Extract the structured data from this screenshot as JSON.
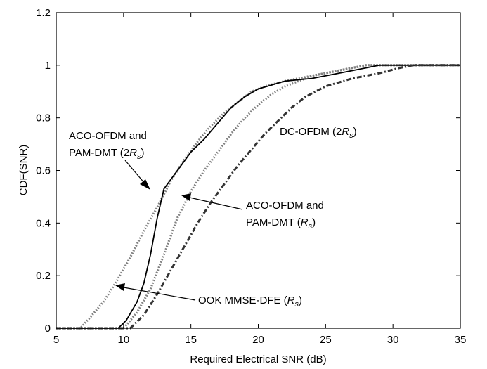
{
  "chart_data": {
    "type": "line",
    "title": "",
    "xlabel": "Required Electrical SNR (dB)",
    "ylabel": "CDF(SNR)",
    "xlim": [
      5,
      35
    ],
    "ylim": [
      0,
      1.2
    ],
    "x_ticks": [
      "5",
      "10",
      "15",
      "20",
      "25",
      "30",
      "35"
    ],
    "y_ticks": [
      "0",
      "0.2",
      "0.4",
      "0.6",
      "0.8",
      "1",
      "1.2"
    ],
    "grid": false,
    "legend": "none",
    "series": [
      {
        "style": "dotted",
        "color": "#808080",
        "points": [
          [
            5,
            0
          ],
          [
            6.8,
            0
          ],
          [
            7.5,
            0.04
          ],
          [
            8.5,
            0.1
          ],
          [
            9.5,
            0.18
          ],
          [
            10.5,
            0.27
          ],
          [
            11.5,
            0.37
          ],
          [
            12.5,
            0.46
          ],
          [
            13.5,
            0.56
          ],
          [
            14.5,
            0.64
          ],
          [
            15.5,
            0.71
          ],
          [
            16.5,
            0.77
          ],
          [
            17.5,
            0.82
          ],
          [
            18.5,
            0.86
          ],
          [
            19.5,
            0.9
          ],
          [
            20.5,
            0.92
          ],
          [
            22,
            0.94
          ],
          [
            24,
            0.96
          ],
          [
            26,
            0.98
          ],
          [
            28,
            1
          ],
          [
            35,
            1
          ]
        ]
      },
      {
        "style": "dotted",
        "color": "#808080",
        "points": [
          [
            5,
            0
          ],
          [
            10,
            0
          ],
          [
            11,
            0.06
          ],
          [
            12,
            0.15
          ],
          [
            13,
            0.28
          ],
          [
            14,
            0.42
          ],
          [
            15,
            0.52
          ],
          [
            16,
            0.6
          ],
          [
            17,
            0.67
          ],
          [
            18,
            0.74
          ],
          [
            19,
            0.8
          ],
          [
            20,
            0.85
          ],
          [
            21,
            0.89
          ],
          [
            22,
            0.92
          ],
          [
            23,
            0.94
          ],
          [
            24,
            0.96
          ],
          [
            26,
            0.98
          ],
          [
            28,
            1
          ],
          [
            35,
            1
          ]
        ]
      },
      {
        "style": "solid",
        "color": "#000000",
        "points": [
          [
            5,
            0
          ],
          [
            9.6,
            0
          ],
          [
            10.2,
            0.03
          ],
          [
            11,
            0.1
          ],
          [
            11.5,
            0.17
          ],
          [
            12,
            0.28
          ],
          [
            12.5,
            0.42
          ],
          [
            13,
            0.53
          ],
          [
            14,
            0.6
          ],
          [
            15,
            0.67
          ],
          [
            16,
            0.72
          ],
          [
            17,
            0.78
          ],
          [
            18,
            0.84
          ],
          [
            19,
            0.88
          ],
          [
            20,
            0.91
          ],
          [
            22,
            0.94
          ],
          [
            24,
            0.95
          ],
          [
            26,
            0.97
          ],
          [
            28,
            0.99
          ],
          [
            29,
            1
          ],
          [
            35,
            1
          ]
        ]
      },
      {
        "style": "dashed",
        "color": "#333333",
        "points": [
          [
            5,
            0
          ],
          [
            10.5,
            0
          ],
          [
            11.5,
            0.05
          ],
          [
            12.5,
            0.13
          ],
          [
            13.5,
            0.22
          ],
          [
            14.5,
            0.31
          ],
          [
            15.5,
            0.4
          ],
          [
            16.5,
            0.48
          ],
          [
            17.5,
            0.55
          ],
          [
            18.5,
            0.62
          ],
          [
            19.5,
            0.68
          ],
          [
            20.5,
            0.74
          ],
          [
            21.5,
            0.79
          ],
          [
            22.5,
            0.84
          ],
          [
            23.5,
            0.88
          ],
          [
            25,
            0.92
          ],
          [
            27,
            0.95
          ],
          [
            29,
            0.97
          ],
          [
            30.5,
            0.99
          ],
          [
            31.5,
            1
          ],
          [
            35,
            1
          ]
        ]
      }
    ],
    "annotations": [
      {
        "lines": [
          "ACO-OFDM and",
          "PAM-DMT (2",
          "R",
          "s",
          ")"
        ]
      },
      {
        "lines": [
          "DC-OFDM (2",
          "R",
          "s",
          ")"
        ]
      },
      {
        "lines": [
          "ACO-OFDM and",
          "PAM-DMT (",
          "R",
          "s",
          ")"
        ]
      },
      {
        "lines": [
          "OOK MMSE-DFE (",
          "R",
          "s",
          ")"
        ]
      }
    ]
  }
}
